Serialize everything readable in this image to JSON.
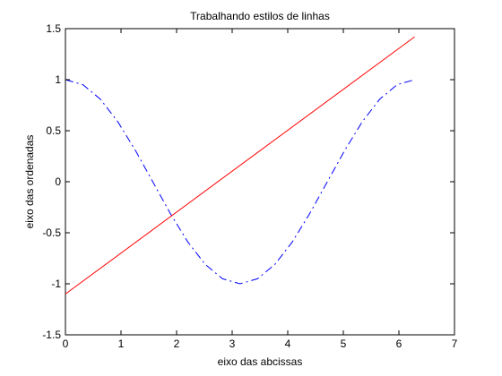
{
  "chart_data": {
    "type": "line",
    "title": "Trabalhando estilos de linhas",
    "xlabel": "eixo das abcissas",
    "ylabel": "eixo das ordenadas",
    "xlim": [
      0,
      7
    ],
    "ylim": [
      -1.5,
      1.5
    ],
    "xticks": [
      "0",
      "1",
      "2",
      "3",
      "4",
      "5",
      "6",
      "7"
    ],
    "yticks": [
      "-1.5",
      "-1",
      "-0.5",
      "0",
      "0.5",
      "1",
      "1.5"
    ],
    "grid": false,
    "series": [
      {
        "style": "dash-dot",
        "color": "#0000ff",
        "x": [
          0,
          0.314,
          0.628,
          0.942,
          1.257,
          1.571,
          1.885,
          2.199,
          2.513,
          2.827,
          3.142,
          3.456,
          3.77,
          4.084,
          4.398,
          4.712,
          5.027,
          5.341,
          5.655,
          5.969,
          6.283
        ],
        "y": [
          1.0,
          0.951,
          0.809,
          0.588,
          0.309,
          0.0,
          -0.309,
          -0.588,
          -0.809,
          -0.951,
          -1.0,
          -0.951,
          -0.809,
          -0.588,
          -0.309,
          0.0,
          0.309,
          0.588,
          0.809,
          0.951,
          1.0
        ]
      },
      {
        "style": "solid",
        "color": "#ff0000",
        "x": [
          0,
          6.283
        ],
        "y": [
          -1.1,
          1.42
        ]
      }
    ]
  }
}
